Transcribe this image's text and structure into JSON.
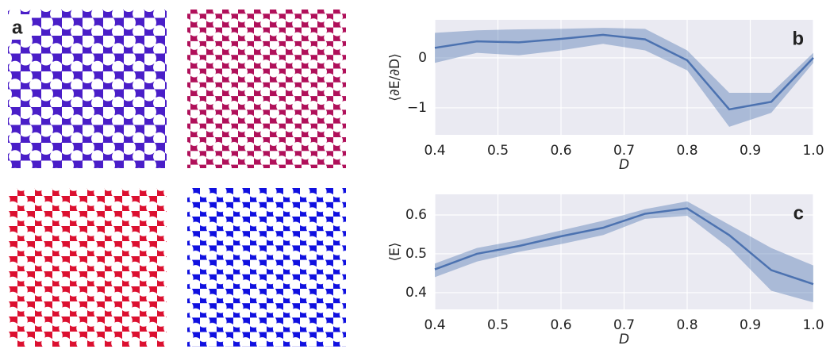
{
  "panel_label": "a",
  "chart_data": [
    {
      "type": "line",
      "label": "b",
      "ylabel": "⟨∂E/∂D⟩",
      "xlabel": "D",
      "x": [
        0.4,
        0.4667,
        0.5333,
        0.6,
        0.6667,
        0.7333,
        0.8,
        0.8667,
        0.9333,
        1.0
      ],
      "values": [
        0.2,
        0.33,
        0.31,
        0.38,
        0.46,
        0.37,
        -0.05,
        -1.03,
        -0.88,
        0.0
      ],
      "upper": [
        0.5,
        0.55,
        0.57,
        0.58,
        0.6,
        0.58,
        0.15,
        -0.7,
        -0.7,
        0.1
      ],
      "lower": [
        -0.1,
        0.1,
        0.05,
        0.15,
        0.28,
        0.15,
        -0.25,
        -1.38,
        -1.1,
        -0.1
      ],
      "color": "#4c72b0",
      "grid": true,
      "xlim": [
        0.4,
        1.0
      ],
      "xticks": [
        0.4,
        0.5,
        0.6,
        0.7,
        0.8,
        0.9,
        {
          "value": 1,
          "label": "1.0"
        }
      ],
      "ylim": [
        -1.54,
        0.76
      ],
      "yticks": [
        0,
        {
          "value": -1,
          "label": "−1"
        }
      ]
    },
    {
      "type": "line",
      "label": "c",
      "ylabel": "⟨E⟩",
      "xlabel": "D",
      "x": [
        0.4,
        0.4667,
        0.5333,
        0.6,
        0.6667,
        0.7333,
        0.8,
        0.8667,
        0.9333,
        1.0
      ],
      "values": [
        0.46,
        0.5,
        0.52,
        0.545,
        0.567,
        0.603,
        0.617,
        0.548,
        0.458,
        0.422
      ],
      "upper": [
        0.475,
        0.515,
        0.535,
        0.56,
        0.585,
        0.615,
        0.635,
        0.575,
        0.515,
        0.47
      ],
      "lower": [
        0.44,
        0.48,
        0.505,
        0.525,
        0.548,
        0.59,
        0.598,
        0.515,
        0.405,
        0.375
      ],
      "color": "#4c72b0",
      "grid": true,
      "xlim": [
        0.4,
        1.0
      ],
      "xticks": [
        0.4,
        0.5,
        0.6,
        0.7,
        0.8,
        0.9,
        {
          "value": 1,
          "label": "1.0"
        }
      ],
      "ylim": [
        0.357,
        0.653
      ],
      "yticks": [
        0.4,
        0.5,
        0.6
      ]
    }
  ]
}
